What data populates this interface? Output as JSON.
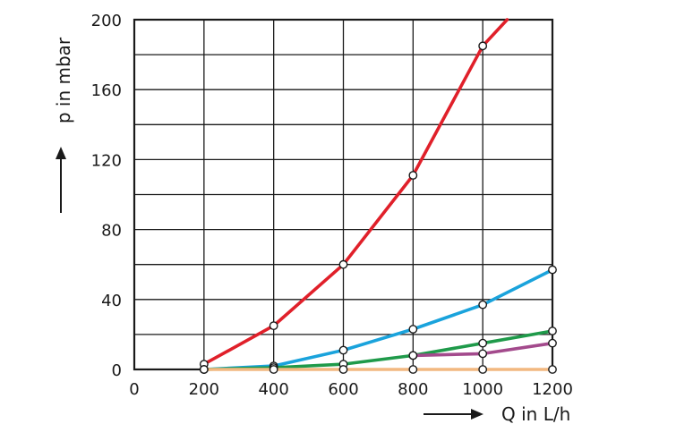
{
  "chart_data": {
    "type": "line",
    "xlabel": "Q in L/h",
    "ylabel": "p in mbar",
    "xlim": [
      0,
      1200
    ],
    "ylim": [
      0,
      200
    ],
    "x_ticks": [
      "0",
      "200",
      "400",
      "600",
      "800",
      "1000",
      "1200"
    ],
    "y_ticks": [
      "0",
      "40",
      "80",
      "120",
      "160",
      "200"
    ],
    "grid": true,
    "x_grid_step": 200,
    "y_grid_step": 20,
    "series": [
      {
        "color": "#e0202a",
        "points": [
          [
            200,
            3
          ],
          [
            400,
            25
          ],
          [
            600,
            60
          ],
          [
            800,
            111
          ],
          [
            1000,
            185
          ],
          [
            1070,
            200
          ]
        ],
        "marker_count": 5
      },
      {
        "color": "#1aa3dc",
        "points": [
          [
            200,
            0
          ],
          [
            400,
            2
          ],
          [
            600,
            11
          ],
          [
            800,
            23
          ],
          [
            1000,
            37
          ],
          [
            1200,
            57
          ]
        ],
        "marker_count": 6
      },
      {
        "color": "#1f9a4a",
        "points": [
          [
            200,
            0
          ],
          [
            400,
            1
          ],
          [
            600,
            3
          ],
          [
            800,
            8
          ],
          [
            1000,
            15
          ],
          [
            1200,
            22
          ]
        ],
        "marker_count": 6
      },
      {
        "color": "#a34a8c",
        "points": [
          [
            800,
            8
          ],
          [
            1000,
            9
          ],
          [
            1200,
            15
          ]
        ],
        "marker_count": 3
      },
      {
        "color": "#f2b880",
        "points": [
          [
            200,
            0
          ],
          [
            400,
            0
          ],
          [
            600,
            0
          ],
          [
            800,
            0
          ],
          [
            1000,
            0
          ],
          [
            1200,
            0
          ]
        ],
        "marker_count": 6
      }
    ]
  }
}
